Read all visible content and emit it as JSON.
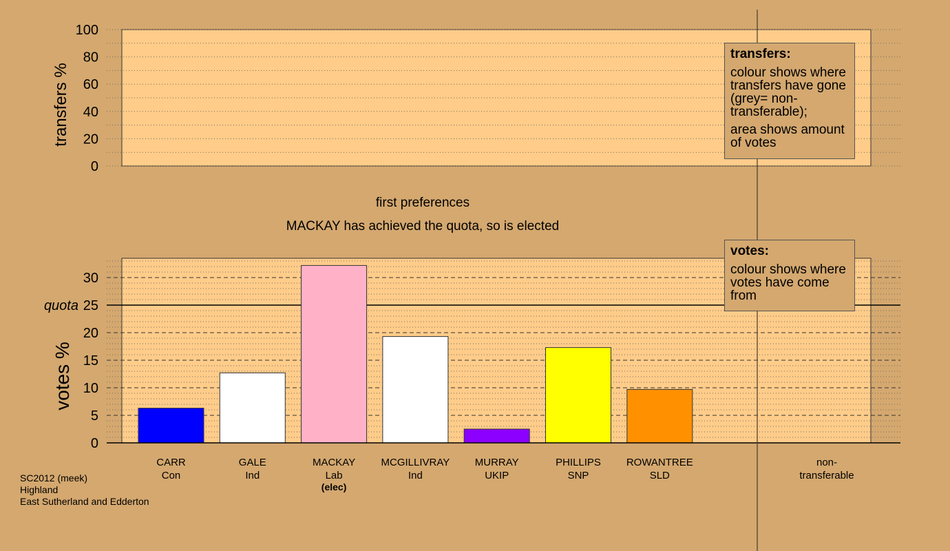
{
  "chart_data": {
    "type": "bar",
    "top_panel": {
      "ylabel": "transfers %",
      "ylim": [
        0,
        100
      ],
      "yticks": [
        "0",
        "20",
        "40",
        "60",
        "80",
        "100"
      ],
      "values": []
    },
    "bottom_panel": {
      "ylabel": "votes %",
      "ylim": [
        0,
        33.5
      ],
      "yticks": [
        "0",
        "5",
        "10",
        "15",
        "20",
        "25",
        "30"
      ],
      "quota": 25,
      "quota_label": "quota",
      "categories": [
        {
          "name": "CARR",
          "party": "Con",
          "note": "",
          "value": 6.3,
          "color": "#0000ff"
        },
        {
          "name": "GALE",
          "party": "Ind",
          "note": "",
          "value": 12.7,
          "color": "#ffffff"
        },
        {
          "name": "MACKAY",
          "party": "Lab",
          "note": "(elec)",
          "value": 32.2,
          "color": "#ffb1c8"
        },
        {
          "name": "MCGILLIVRAY",
          "party": "Ind",
          "note": "",
          "value": 19.3,
          "color": "#ffffff"
        },
        {
          "name": "MURRAY",
          "party": "UKIP",
          "note": "",
          "value": 2.5,
          "color": "#8b00ff"
        },
        {
          "name": "PHILLIPS",
          "party": "SNP",
          "note": "",
          "value": 17.3,
          "color": "#ffff00"
        },
        {
          "name": "ROWANTREE",
          "party": "SLD",
          "note": "",
          "value": 9.7,
          "color": "#ff9100"
        }
      ],
      "nontransferable": {
        "line1": "non-",
        "line2": "transferable"
      }
    },
    "grid": true
  },
  "stage_title": "first preferences",
  "stage_message": "MACKAY has achieved the quota, so is elected",
  "legend_transfers": {
    "title": "transfers:",
    "p1": "colour shows where transfers have gone (grey= non-transferable);",
    "p2": "area shows amount of votes"
  },
  "legend_votes": {
    "title": "votes:",
    "p1": "colour shows where votes have come from"
  },
  "footer": {
    "line1": "SC2012 (meek)",
    "line2": "Highland",
    "line3": "East Sutherland and Edderton"
  },
  "colors": {
    "background": "#d4a86f",
    "panel": "#ffcc8a"
  }
}
